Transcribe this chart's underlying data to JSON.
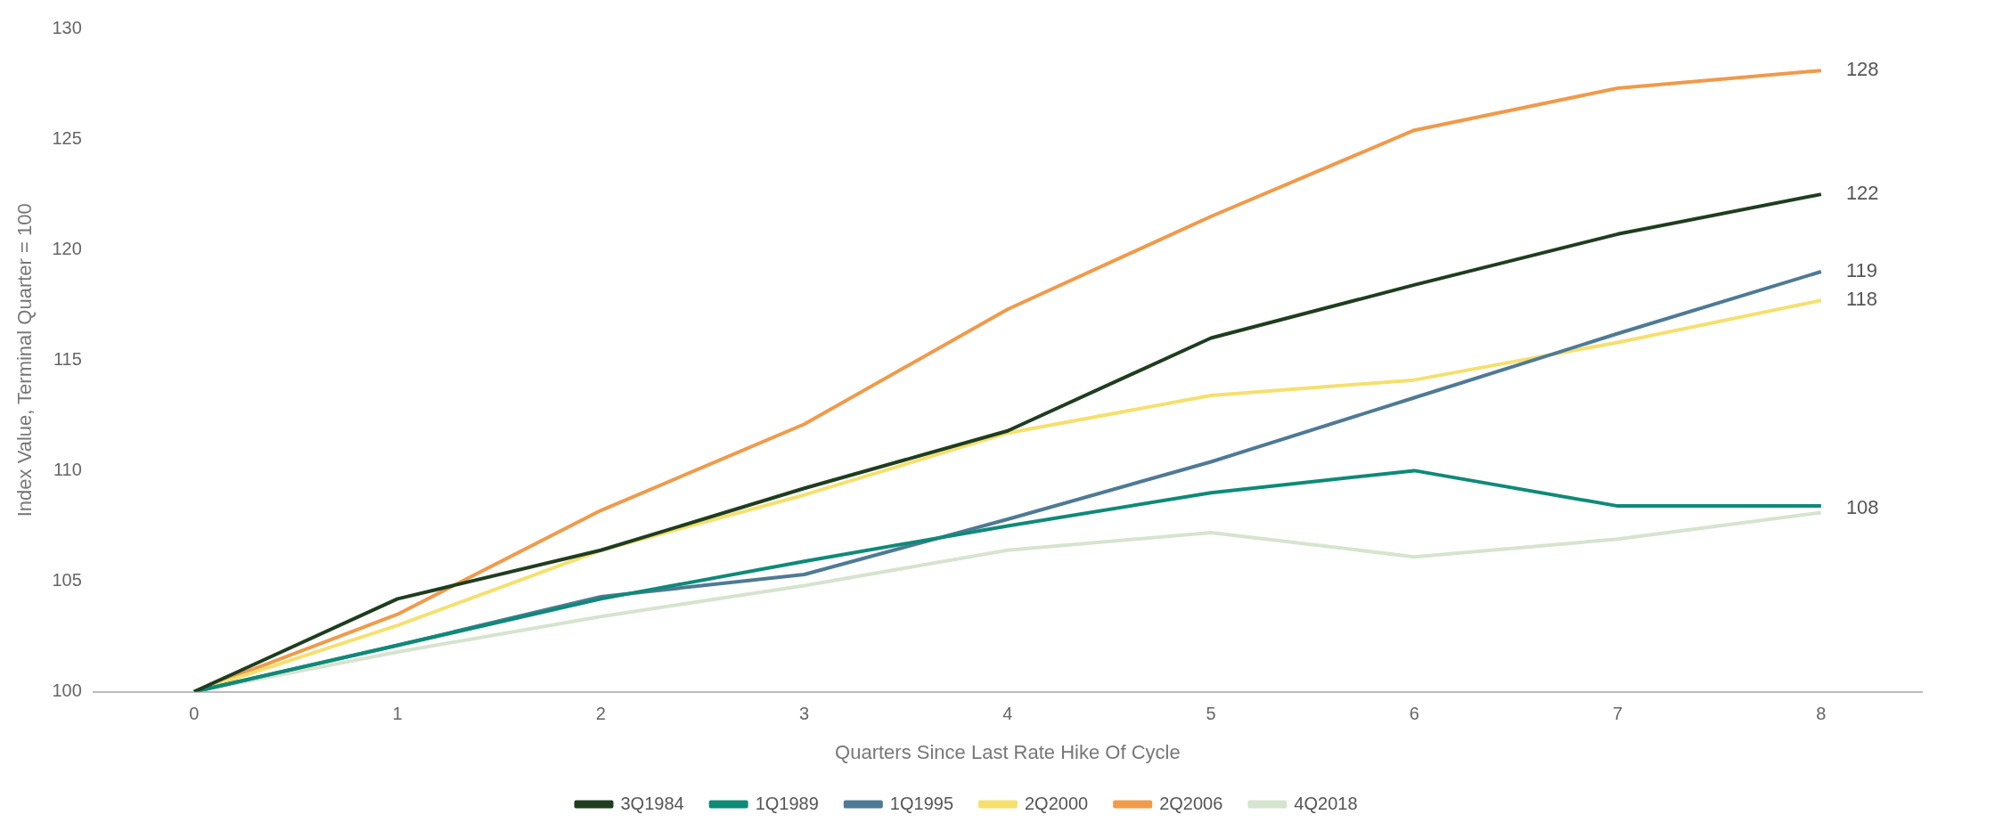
{
  "chart_data": {
    "type": "line",
    "xlabel": "Quarters Since Last Rate Hike Of Cycle",
    "ylabel": "Index Value, Terminal Quarter = 100",
    "categories": [
      "0",
      "1",
      "2",
      "3",
      "4",
      "5",
      "6",
      "7",
      "8"
    ],
    "series": [
      {
        "name": "3Q1984",
        "color": "#1f3d1f",
        "values": [
          100,
          104.2,
          106.4,
          109.2,
          111.8,
          116.0,
          118.4,
          120.7,
          122.5
        ]
      },
      {
        "name": "1Q1989",
        "color": "#0e8a78",
        "values": [
          100,
          102.1,
          104.2,
          105.9,
          107.5,
          109.0,
          110.0,
          108.4,
          108.4
        ]
      },
      {
        "name": "1Q1995",
        "color": "#4e7a95",
        "values": [
          100,
          102.1,
          104.3,
          105.3,
          107.8,
          110.4,
          113.3,
          116.2,
          119.0
        ]
      },
      {
        "name": "2Q2000",
        "color": "#f5e06e",
        "values": [
          100,
          103.0,
          106.4,
          108.9,
          111.7,
          113.4,
          114.1,
          115.8,
          117.7
        ]
      },
      {
        "name": "2Q2006",
        "color": "#f09a4a",
        "values": [
          100,
          103.5,
          108.2,
          112.1,
          117.3,
          121.5,
          125.4,
          127.3,
          128.1
        ]
      },
      {
        "name": "4Q2018",
        "color": "#d6e4cf",
        "values": [
          100,
          101.8,
          103.4,
          104.8,
          106.4,
          107.2,
          106.1,
          106.9,
          108.1
        ]
      }
    ],
    "annotations": [
      {
        "text": "128",
        "x": "8",
        "y": 128.1
      },
      {
        "text": "122",
        "x": "8",
        "y": 122.5
      },
      {
        "text": "119",
        "x": "8",
        "y": 119.0
      },
      {
        "text": "118",
        "x": "8",
        "y": 117.7
      },
      {
        "text": "108",
        "x": "8",
        "y": 108.3
      }
    ],
    "ylim": [
      100,
      130
    ],
    "yticks": [
      100,
      105,
      110,
      115,
      120,
      125,
      130
    ],
    "grid": false,
    "legend": "bottom",
    "marker": "none",
    "line_style": "solid"
  }
}
